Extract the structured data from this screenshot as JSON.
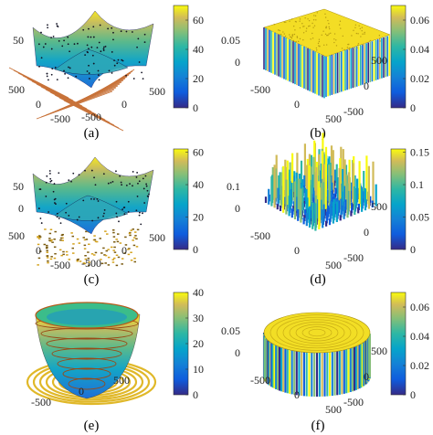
{
  "panels": [
    {
      "id": "a",
      "label": "(a)",
      "xticks": [
        "500",
        "0",
        "-500"
      ],
      "yticks": [
        "-500",
        "0",
        "500"
      ],
      "zticks": [
        "50"
      ],
      "cbar": {
        "ticks": [
          "60",
          "40",
          "20",
          "0"
        ],
        "range": [
          0,
          70
        ]
      },
      "surface": "bowl",
      "floor": "grid"
    },
    {
      "id": "b",
      "label": "(b)",
      "xticks": [
        "-500",
        "0",
        "500"
      ],
      "yticks": [
        "500",
        "0",
        "-500"
      ],
      "zticks": [
        "0.05",
        "0"
      ],
      "cbar": {
        "ticks": [
          "0.06",
          "0.04",
          "0.02",
          "0"
        ],
        "range": [
          0,
          0.07
        ]
      },
      "surface": "flat-top"
    },
    {
      "id": "c",
      "label": "(c)",
      "xticks": [
        "500",
        "0",
        "-500"
      ],
      "yticks": [
        "-500",
        "0",
        "500"
      ],
      "zticks": [
        "50",
        "0"
      ],
      "cbar": {
        "ticks": [
          "60",
          "40",
          "20",
          "0"
        ],
        "range": [
          0,
          62
        ]
      },
      "surface": "bowl",
      "floor": "noise"
    },
    {
      "id": "d",
      "label": "(d)",
      "xticks": [
        "-500",
        "0",
        "500"
      ],
      "yticks": [
        "500",
        "0",
        "-500"
      ],
      "zticks": [
        "0.1",
        "0"
      ],
      "cbar": {
        "ticks": [
          "0.15",
          "0.1",
          "0.05",
          "0"
        ],
        "range": [
          0,
          0.155
        ]
      },
      "surface": "noise"
    },
    {
      "id": "e",
      "label": "(e)",
      "xticks": [
        "-500",
        "0",
        "500"
      ],
      "yticks": [],
      "zticks": [],
      "cbar": {
        "ticks": [
          "40",
          "30",
          "20",
          "10",
          "0"
        ],
        "range": [
          0,
          40
        ]
      },
      "surface": "cone"
    },
    {
      "id": "f",
      "label": "(f)",
      "xticks": [
        "-500",
        "0",
        "500"
      ],
      "yticks": [
        "500",
        "0",
        "-500"
      ],
      "zticks": [
        "0.05",
        "0"
      ],
      "cbar": {
        "ticks": [
          "0.06",
          "0.04",
          "0.02",
          "0"
        ],
        "range": [
          0,
          0.07
        ]
      },
      "surface": "cylinder"
    }
  ]
}
